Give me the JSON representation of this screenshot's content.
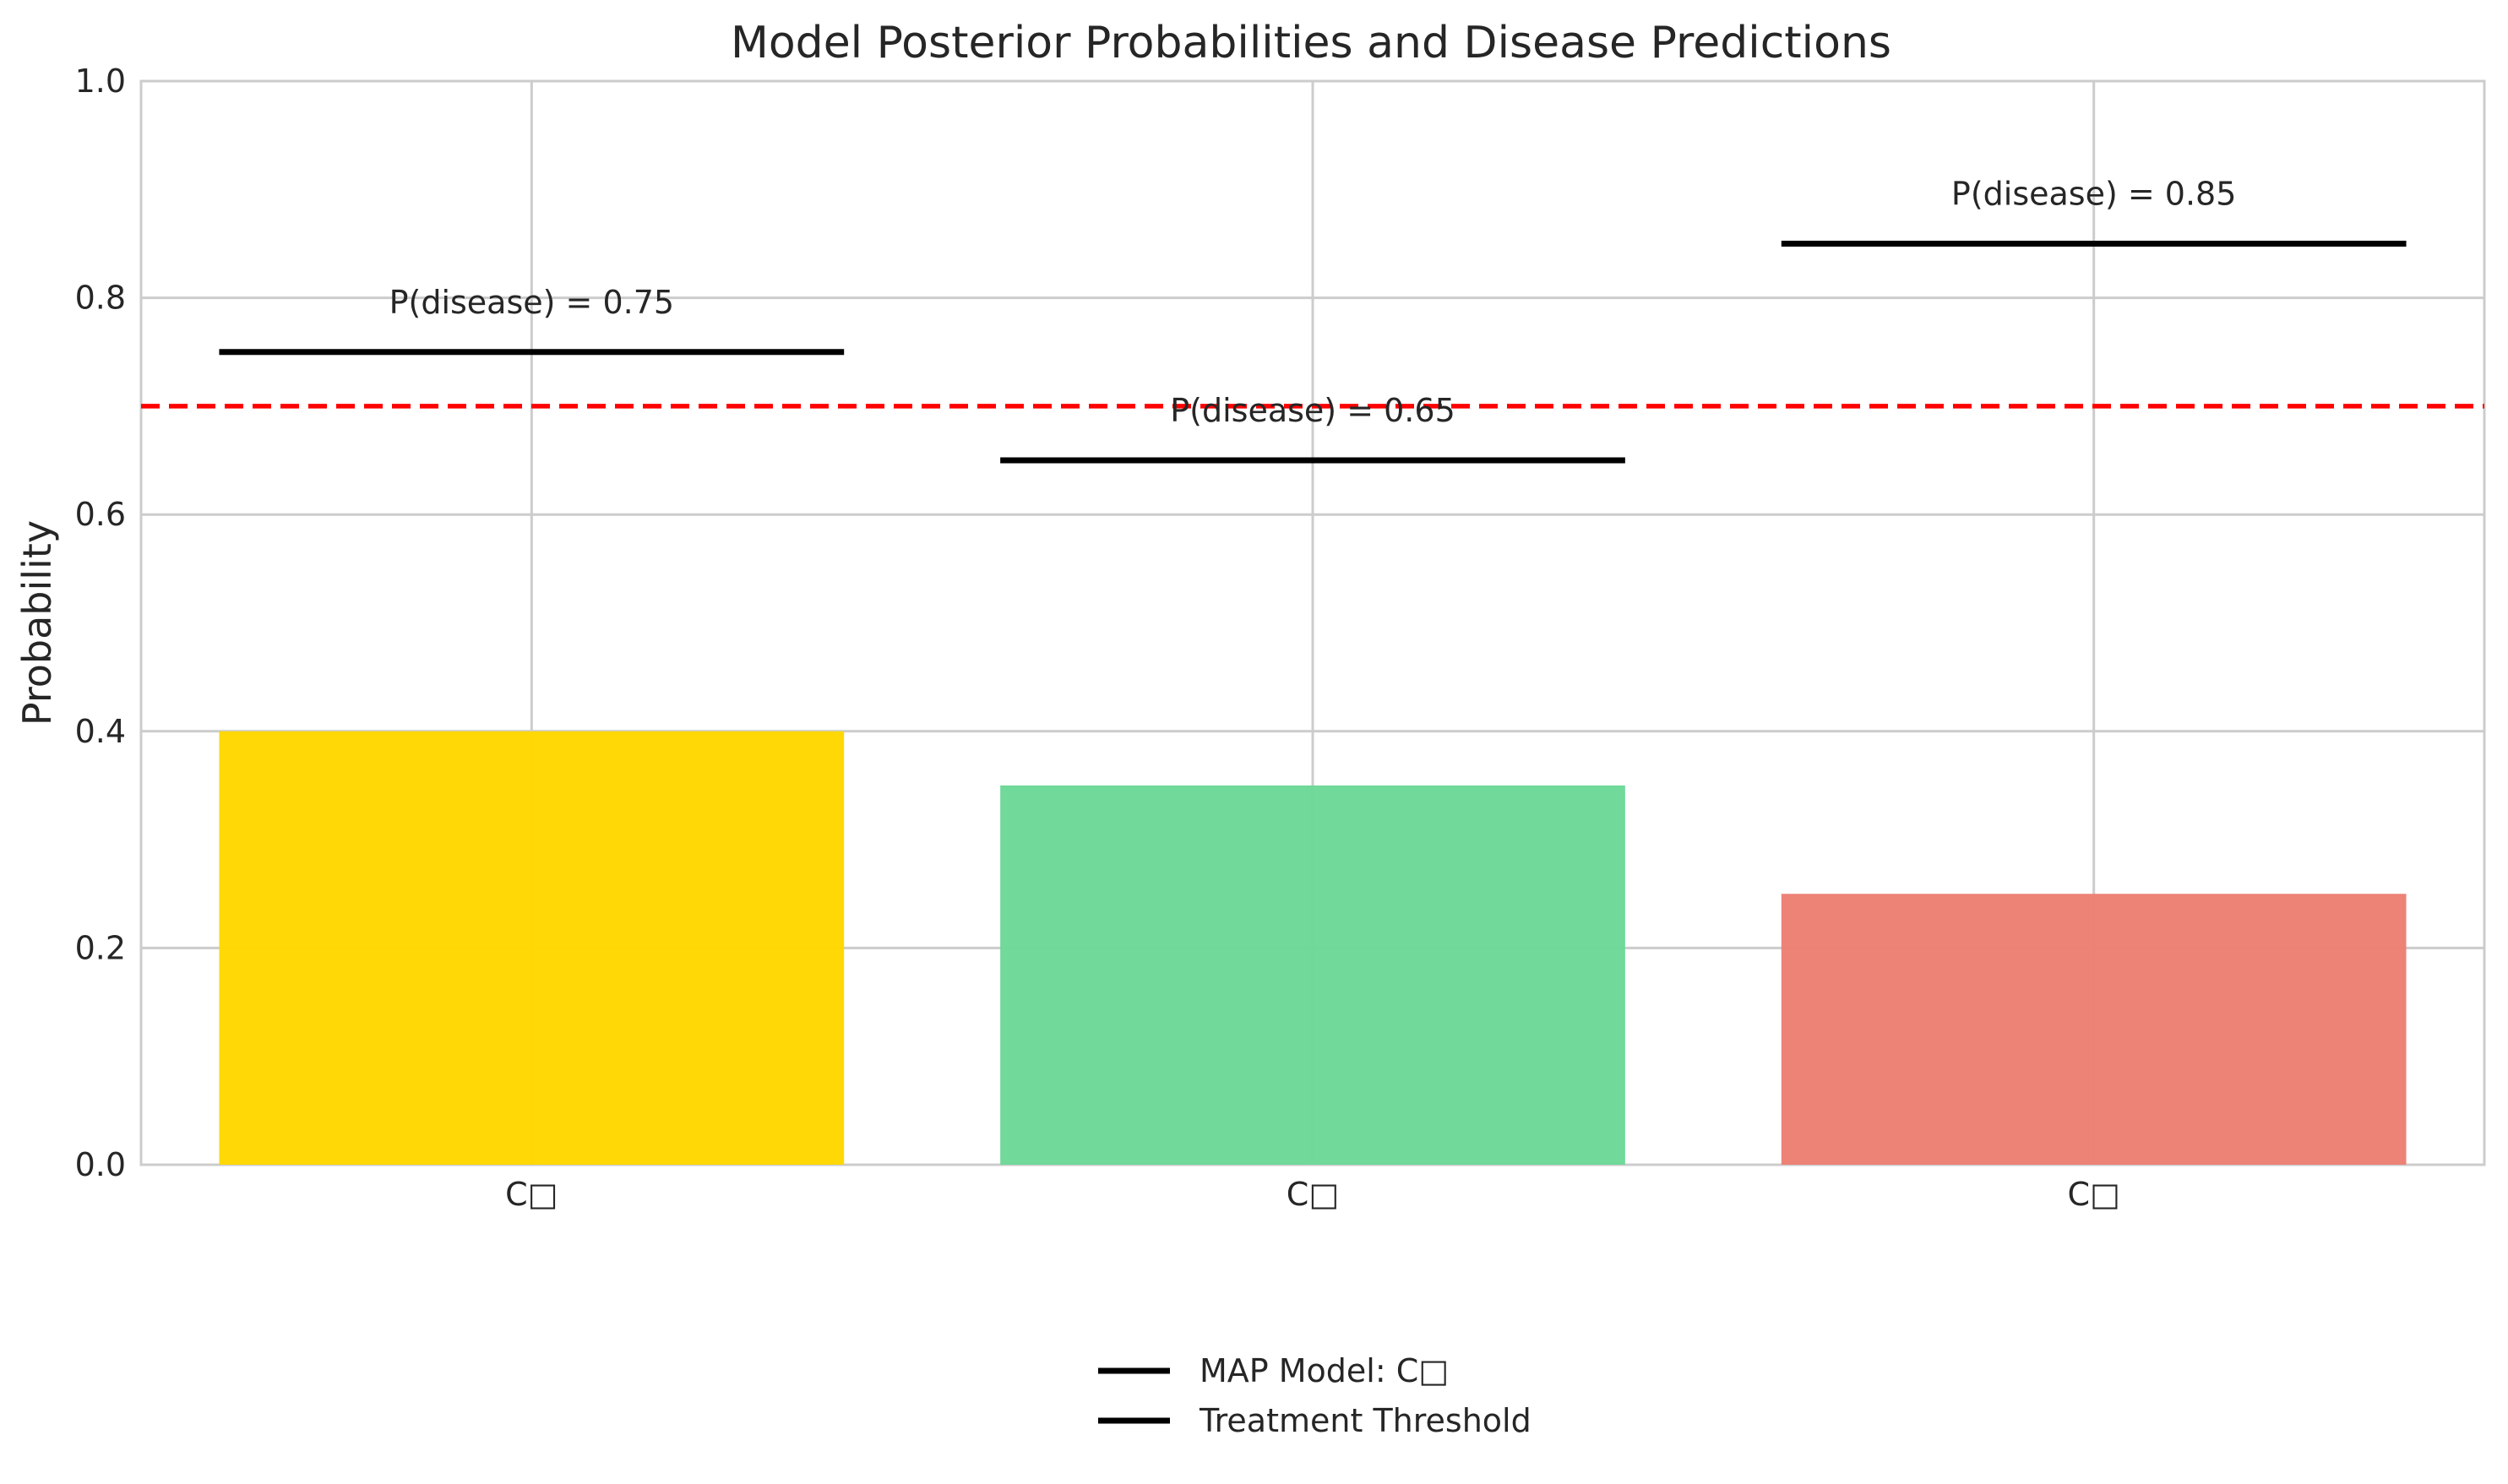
{
  "chart_data": {
    "type": "bar",
    "title": "Model Posterior Probabilities and Disease Predictions",
    "xlabel": "",
    "ylabel": "Probability",
    "ylim": [
      0,
      1.0
    ],
    "yticks": [
      "0.0",
      "0.2",
      "0.4",
      "0.6",
      "0.8",
      "1.0"
    ],
    "ytick_values": [
      0,
      0.2,
      0.4,
      0.6,
      0.8,
      1.0
    ],
    "grid": true,
    "categories": [
      "C□",
      "C□",
      "C□"
    ],
    "values": [
      0.4,
      0.35,
      0.25
    ],
    "bar_colors": [
      "#FFD700",
      "#6ED898",
      "#ED8074"
    ],
    "disease_predictions": [
      0.75,
      0.65,
      0.85
    ],
    "annotations": [
      "P(disease) = 0.75",
      "P(disease) = 0.65",
      "P(disease) = 0.85"
    ],
    "threshold": 0.7,
    "threshold_color": "#FF0000",
    "prediction_line_color": "#000000",
    "legend": {
      "placement": "bottom-center",
      "entries": [
        "MAP Model: C□",
        "Treatment Threshold"
      ]
    }
  }
}
